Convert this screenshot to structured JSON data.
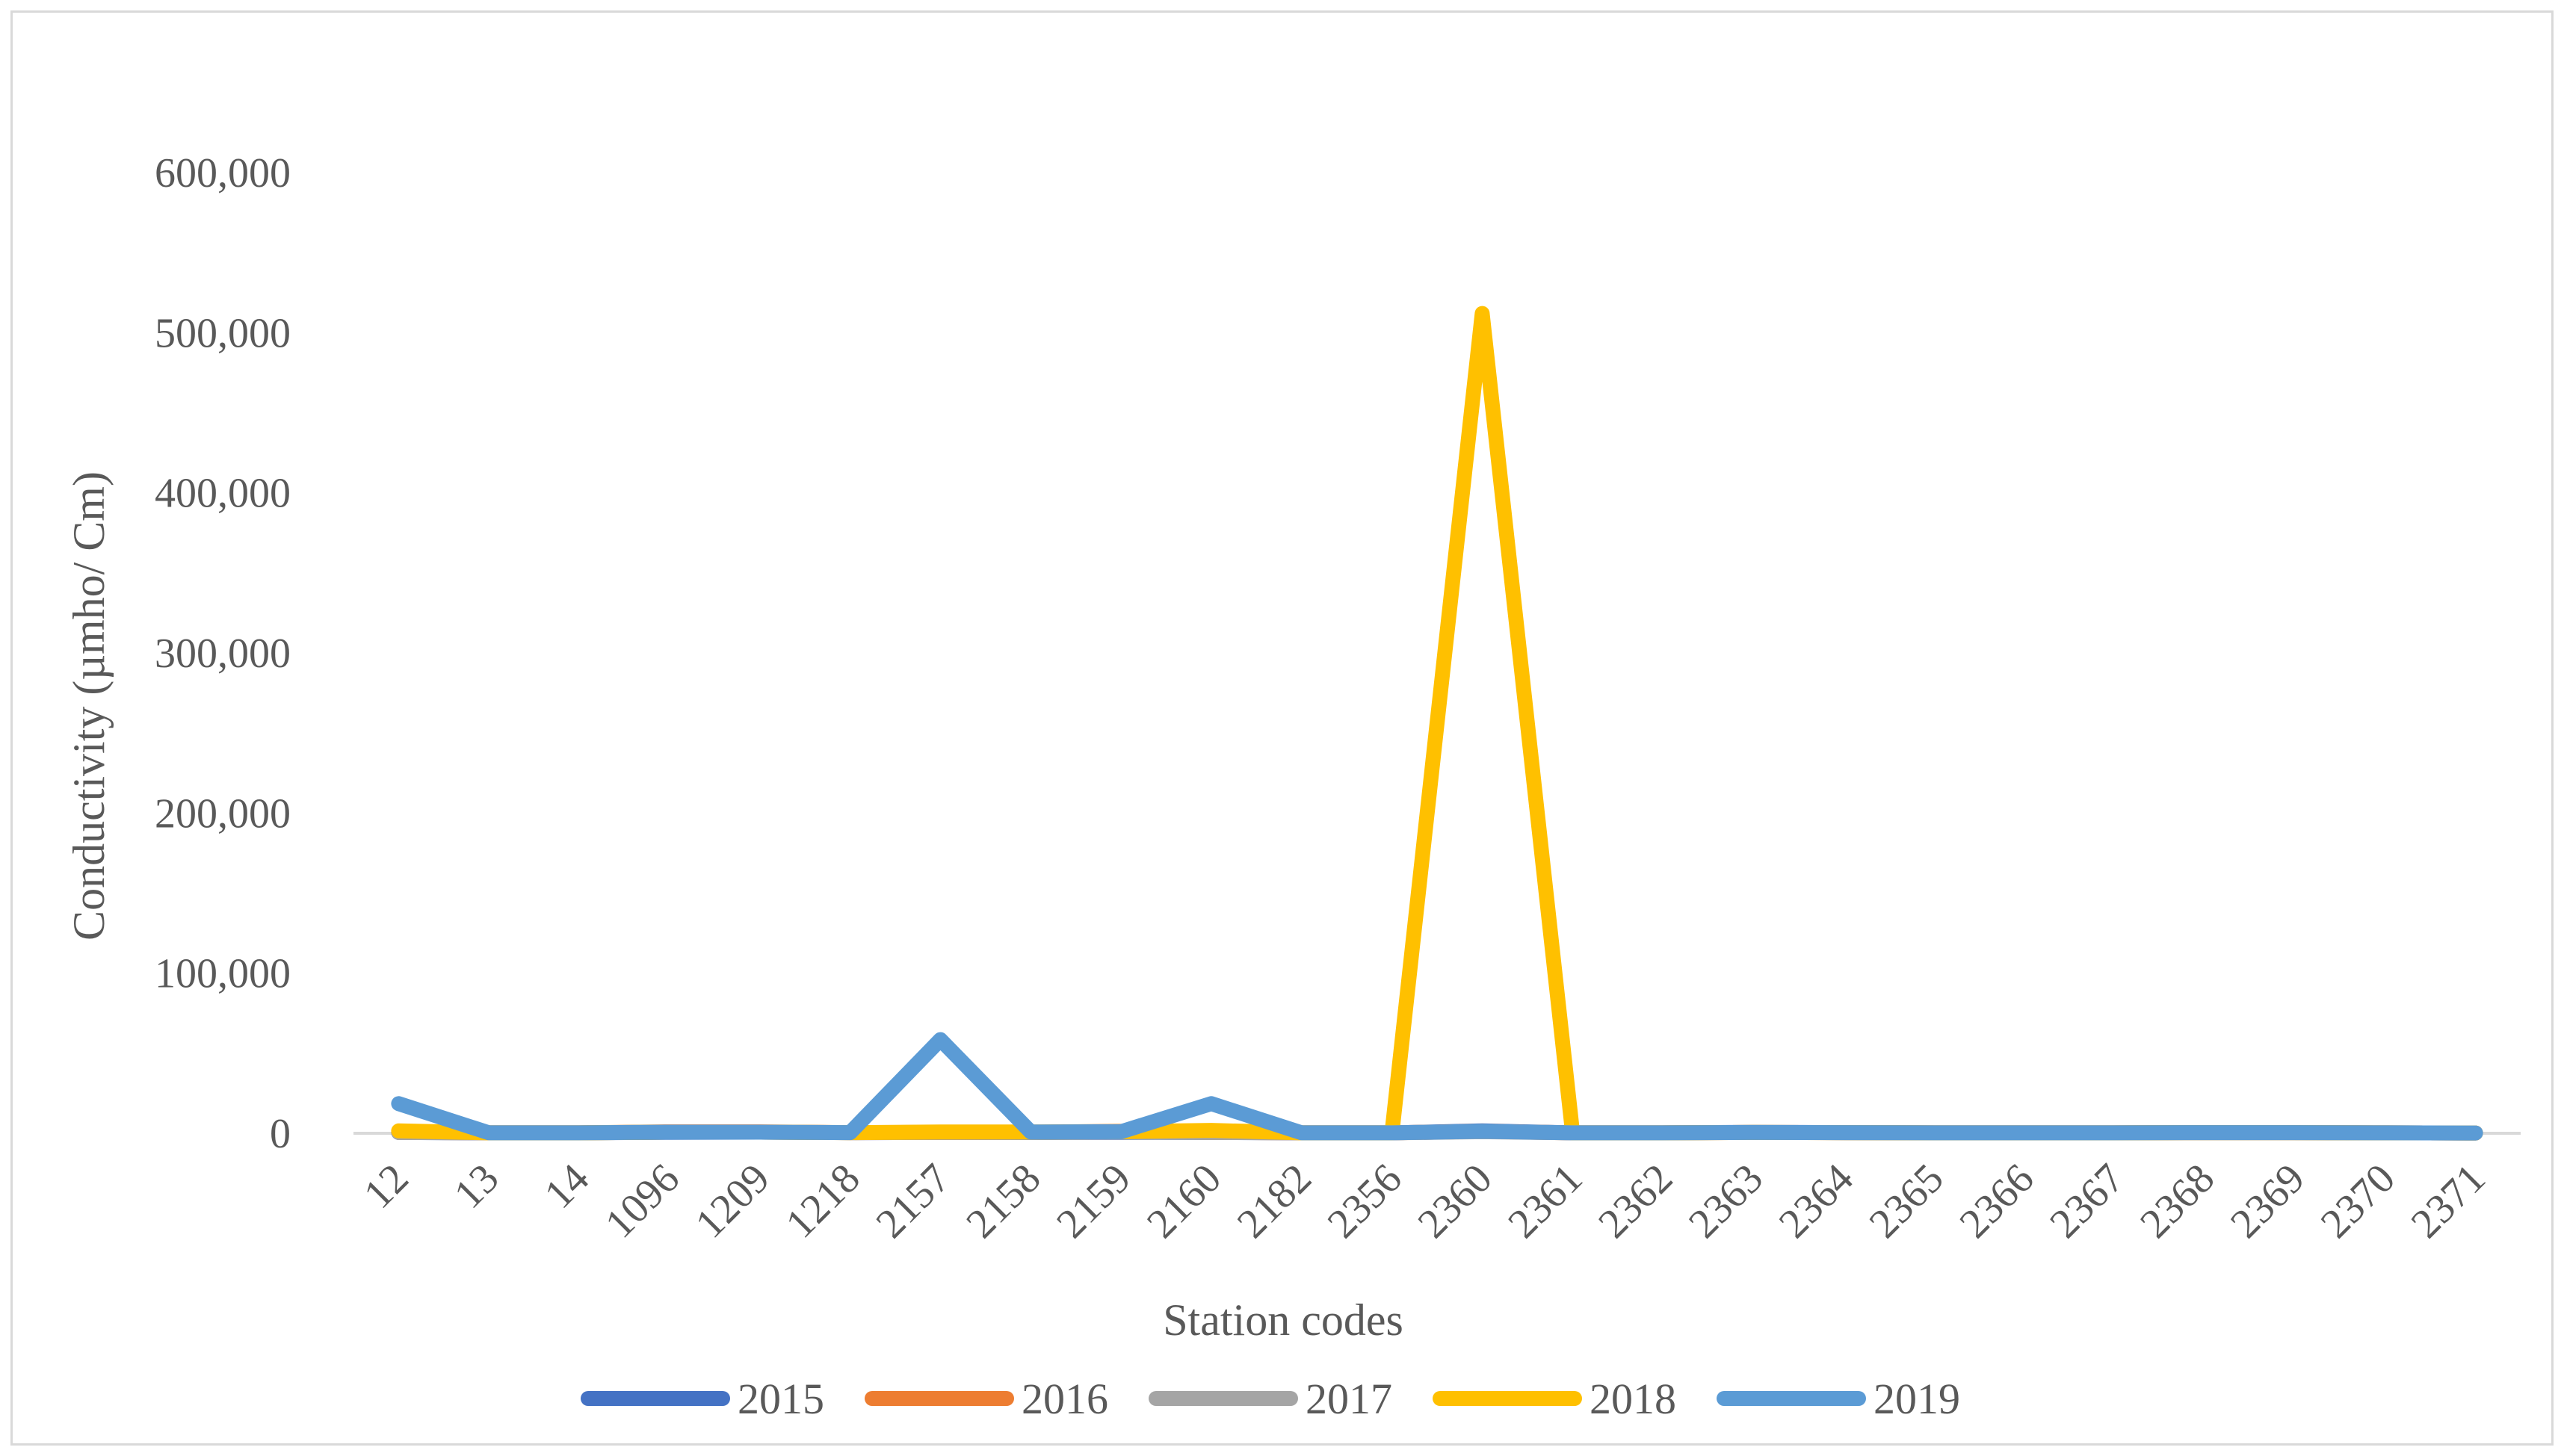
{
  "chart_data": {
    "type": "line",
    "title": "",
    "xlabel": "Station codes",
    "ylabel": "Conductivity (µmho/ Cm)",
    "ylim": [
      0,
      600000
    ],
    "yticks": [
      0,
      100000,
      200000,
      300000,
      400000,
      500000,
      600000
    ],
    "ytick_labels": [
      "0",
      "100,000",
      "200,000",
      "300,000",
      "400,000",
      "500,000",
      "600,000"
    ],
    "grid": false,
    "legend_position": "bottom",
    "categories": [
      "12",
      "13",
      "14",
      "1096",
      "1209",
      "1218",
      "2157",
      "2158",
      "2159",
      "2160",
      "2182",
      "2356",
      "2360",
      "2361",
      "2362",
      "2363",
      "2364",
      "2365",
      "2366",
      "2367",
      "2368",
      "2369",
      "2370",
      "2371"
    ],
    "series": [
      {
        "name": "2015",
        "color": "#4472C4",
        "values": [
          500,
          300,
          300,
          600,
          700,
          400,
          500,
          500,
          600,
          500,
          300,
          300,
          1500,
          300,
          300,
          600,
          400,
          300,
          300,
          300,
          400,
          400,
          300,
          200
        ]
      },
      {
        "name": "2016",
        "color": "#ED7D31",
        "values": [
          600,
          300,
          300,
          900,
          900,
          400,
          500,
          700,
          1200,
          600,
          300,
          300,
          1200,
          300,
          300,
          500,
          400,
          300,
          300,
          300,
          400,
          400,
          300,
          200
        ]
      },
      {
        "name": "2017",
        "color": "#A5A5A5",
        "values": [
          500,
          300,
          300,
          700,
          700,
          400,
          500,
          600,
          800,
          500,
          300,
          300,
          1000,
          300,
          300,
          500,
          400,
          300,
          300,
          300,
          400,
          400,
          300,
          200
        ]
      },
      {
        "name": "2018",
        "color": "#FFC000",
        "values": [
          1500,
          300,
          300,
          700,
          700,
          400,
          800,
          800,
          1000,
          1800,
          300,
          300,
          512000,
          300,
          300,
          500,
          400,
          300,
          300,
          300,
          400,
          400,
          300,
          200
        ]
      },
      {
        "name": "2019",
        "color": "#5B9BD5",
        "values": [
          18500,
          300,
          300,
          700,
          700,
          400,
          58500,
          800,
          1000,
          18500,
          300,
          300,
          1200,
          300,
          300,
          500,
          400,
          300,
          300,
          300,
          400,
          400,
          300,
          200
        ]
      }
    ]
  }
}
